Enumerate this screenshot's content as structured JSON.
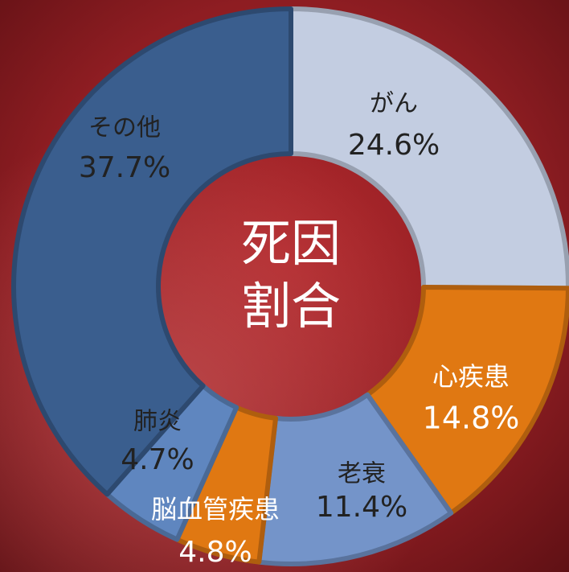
{
  "chart_data": {
    "type": "donut",
    "title_lines": [
      "死因",
      "割合"
    ],
    "categories": [
      "がん",
      "心疾患",
      "老衰",
      "脳血管疾患",
      "肺炎",
      "その他"
    ],
    "values": [
      24.6,
      14.8,
      11.4,
      4.8,
      4.7,
      37.7
    ],
    "value_labels": [
      "24.6%",
      "14.8%",
      "11.4%",
      "4.8%",
      "4.7%",
      "37.7%"
    ],
    "colors": [
      "#c3cde1",
      "#e07812",
      "#7494c9",
      "#e07812",
      "#5f86bf",
      "#3a5e8e"
    ]
  }
}
